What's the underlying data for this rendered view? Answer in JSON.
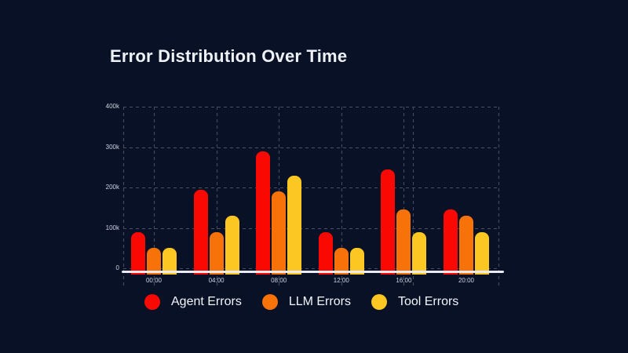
{
  "title": "Error Distribution Over Time",
  "colors": {
    "background": "#081126",
    "gridline": "#434e6b",
    "axis_line": "#e8ebf2",
    "tick_label": "#ccd3e0",
    "title_text": "#eef1f6",
    "legend_text": "#f3f5f9"
  },
  "chart_data": {
    "type": "bar",
    "title": "Error Distribution Over Time",
    "categories": [
      "00:00",
      "04:00",
      "08:00",
      "12:00",
      "16:00",
      "20:00"
    ],
    "series": [
      {
        "name": "Agent Errors",
        "color": "#fa0802",
        "values": [
          90000,
          195000,
          290000,
          90000,
          245000,
          145000
        ]
      },
      {
        "name": "LLM Errors",
        "color": "#f7730a",
        "values": [
          50000,
          90000,
          190000,
          50000,
          145000,
          130000
        ]
      },
      {
        "name": "Tool Errors",
        "color": "#fcc722",
        "values": [
          50000,
          130000,
          230000,
          50000,
          90000,
          90000
        ]
      }
    ],
    "xlabel": "",
    "ylabel": "",
    "ylim": [
      0,
      400000
    ],
    "y_ticks": [
      "0",
      "100k",
      "200k",
      "300k",
      "400k"
    ],
    "grid": "dashed, horizontal and vertical",
    "legend_position": "bottom"
  }
}
